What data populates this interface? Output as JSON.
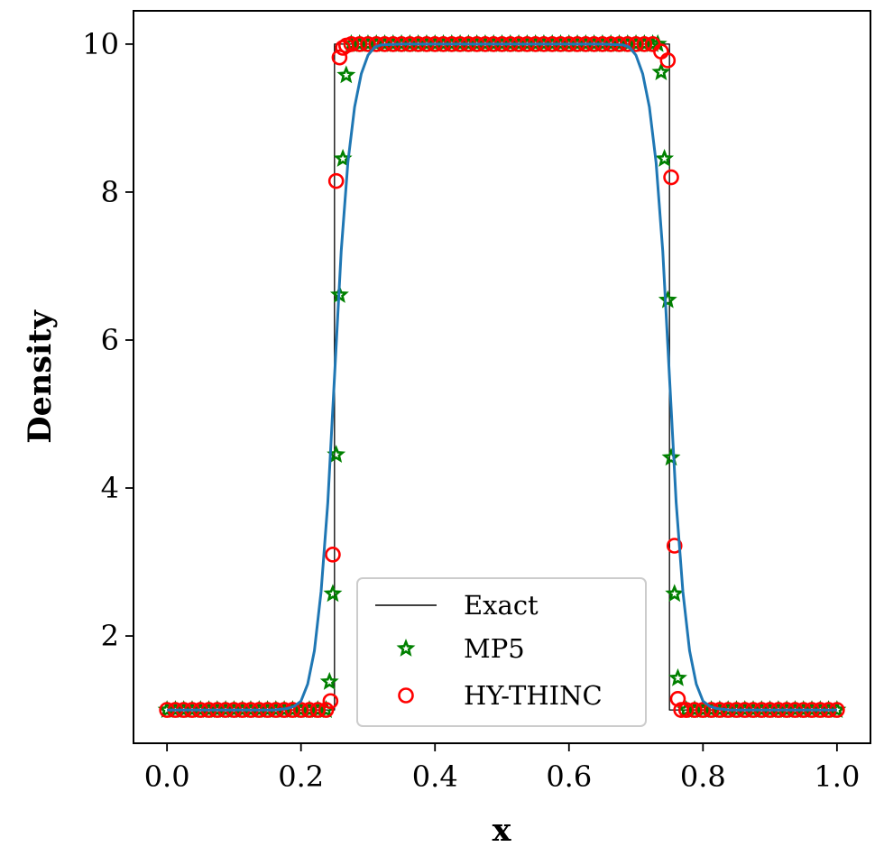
{
  "chart_data": {
    "type": "line",
    "xlabel": "x",
    "ylabel": "Density",
    "xlim": [
      -0.05,
      1.05
    ],
    "ylim": [
      0.55,
      10.45
    ],
    "x_ticks": [
      0.0,
      0.2,
      0.4,
      0.6,
      0.8,
      1.0
    ],
    "x_tick_labels": [
      "0.0",
      "0.2",
      "0.4",
      "0.6",
      "0.8",
      "1.0"
    ],
    "y_ticks": [
      2,
      4,
      6,
      8,
      10
    ],
    "y_tick_labels": [
      "2",
      "4",
      "6",
      "8",
      "10"
    ],
    "grid": false,
    "legend_position": "lower-center",
    "series": [
      {
        "name": "Exact",
        "style": "line",
        "color": "#000000",
        "x": [
          0.0,
          0.25,
          0.25,
          0.75,
          0.75,
          1.0
        ],
        "y": [
          1.0,
          1.0,
          10.0,
          10.0,
          1.0,
          1.0
        ]
      },
      {
        "name": "MP5",
        "style": "star-markers",
        "color": "#008000",
        "x": [
          0.0,
          0.0125,
          0.025,
          0.0375,
          0.05,
          0.0625,
          0.075,
          0.0875,
          0.1,
          0.1125,
          0.125,
          0.1375,
          0.15,
          0.1625,
          0.175,
          0.1875,
          0.2,
          0.2125,
          0.225,
          0.2375,
          0.2425,
          0.2475,
          0.2525,
          0.2575,
          0.2625,
          0.2675,
          0.275,
          0.2875,
          0.3,
          0.3125,
          0.325,
          0.3375,
          0.35,
          0.3625,
          0.375,
          0.3875,
          0.4,
          0.4125,
          0.425,
          0.4375,
          0.45,
          0.4625,
          0.475,
          0.4875,
          0.5,
          0.5125,
          0.525,
          0.5375,
          0.55,
          0.5625,
          0.575,
          0.5875,
          0.6,
          0.6125,
          0.625,
          0.6375,
          0.65,
          0.6625,
          0.675,
          0.6875,
          0.7,
          0.7125,
          0.725,
          0.7325,
          0.7375,
          0.7425,
          0.7475,
          0.7525,
          0.7575,
          0.7625,
          0.775,
          0.7875,
          0.8,
          0.8125,
          0.825,
          0.8375,
          0.85,
          0.8625,
          0.875,
          0.8875,
          0.9,
          0.9125,
          0.925,
          0.9375,
          0.95,
          0.9625,
          0.975,
          0.9875,
          1.0
        ],
        "y": [
          1.0,
          1.0,
          1.0,
          1.0,
          1.0,
          1.0,
          1.0,
          1.0,
          1.0,
          1.0,
          1.0,
          1.0,
          1.0,
          1.0,
          1.0,
          1.0,
          1.0,
          1.0,
          1.0,
          1.0,
          1.38,
          2.57,
          4.45,
          6.61,
          8.45,
          9.58,
          10.0,
          10.0,
          10.0,
          10.0,
          10.0,
          10.0,
          10.0,
          10.0,
          10.0,
          10.0,
          10.0,
          10.0,
          10.0,
          10.0,
          10.0,
          10.0,
          10.0,
          10.0,
          10.0,
          10.0,
          10.0,
          10.0,
          10.0,
          10.0,
          10.0,
          10.0,
          10.0,
          10.0,
          10.0,
          10.0,
          10.0,
          10.0,
          10.0,
          10.0,
          10.0,
          10.0,
          10.0,
          10.0,
          9.62,
          8.45,
          6.54,
          4.41,
          2.57,
          1.43,
          1.0,
          1.0,
          1.0,
          1.0,
          1.0,
          1.0,
          1.0,
          1.0,
          1.0,
          1.0,
          1.0,
          1.0,
          1.0,
          1.0,
          1.0,
          1.0,
          1.0,
          1.0,
          1.0
        ]
      },
      {
        "name": "HY-THINC",
        "style": "circle-markers",
        "color": "#ff0000",
        "x": [
          0.0,
          0.0125,
          0.025,
          0.0375,
          0.05,
          0.0625,
          0.075,
          0.0875,
          0.1,
          0.1125,
          0.125,
          0.1375,
          0.15,
          0.1625,
          0.175,
          0.1875,
          0.2,
          0.2125,
          0.225,
          0.2375,
          0.244,
          0.2475,
          0.2525,
          0.2575,
          0.2625,
          0.2675,
          0.275,
          0.2875,
          0.3,
          0.3125,
          0.325,
          0.3375,
          0.35,
          0.3625,
          0.375,
          0.3875,
          0.4,
          0.4125,
          0.425,
          0.4375,
          0.45,
          0.4625,
          0.475,
          0.4875,
          0.5,
          0.5125,
          0.525,
          0.5375,
          0.55,
          0.5625,
          0.575,
          0.5875,
          0.6,
          0.6125,
          0.625,
          0.6375,
          0.65,
          0.6625,
          0.675,
          0.6875,
          0.7,
          0.7125,
          0.725,
          0.7375,
          0.7475,
          0.7525,
          0.7575,
          0.7625,
          0.7675,
          0.775,
          0.7875,
          0.8,
          0.8125,
          0.825,
          0.8375,
          0.85,
          0.8625,
          0.875,
          0.8875,
          0.9,
          0.9125,
          0.925,
          0.9375,
          0.95,
          0.9625,
          0.975,
          0.9875,
          1.0
        ],
        "y": [
          1.0,
          1.0,
          1.0,
          1.0,
          1.0,
          1.0,
          1.0,
          1.0,
          1.0,
          1.0,
          1.0,
          1.0,
          1.0,
          1.0,
          1.0,
          1.0,
          1.0,
          1.0,
          1.0,
          1.0,
          1.12,
          3.1,
          8.15,
          9.82,
          9.95,
          9.98,
          10.0,
          10.0,
          10.0,
          10.0,
          10.0,
          10.0,
          10.0,
          10.0,
          10.0,
          10.0,
          10.0,
          10.0,
          10.0,
          10.0,
          10.0,
          10.0,
          10.0,
          10.0,
          10.0,
          10.0,
          10.0,
          10.0,
          10.0,
          10.0,
          10.0,
          10.0,
          10.0,
          10.0,
          10.0,
          10.0,
          10.0,
          10.0,
          10.0,
          10.0,
          10.0,
          10.0,
          10.0,
          9.9,
          9.78,
          8.2,
          3.22,
          1.15,
          1.0,
          1.0,
          1.0,
          1.0,
          1.0,
          1.0,
          1.0,
          1.0,
          1.0,
          1.0,
          1.0,
          1.0,
          1.0,
          1.0,
          1.0,
          1.0,
          1.0,
          1.0,
          1.0,
          1.0
        ]
      },
      {
        "style": "line",
        "color": "#1f77b4",
        "x": [
          0.0,
          0.1,
          0.16,
          0.18,
          0.19,
          0.2,
          0.21,
          0.22,
          0.23,
          0.24,
          0.25,
          0.26,
          0.27,
          0.28,
          0.29,
          0.3,
          0.31,
          0.32,
          0.35,
          0.5,
          0.65,
          0.68,
          0.69,
          0.7,
          0.71,
          0.72,
          0.73,
          0.74,
          0.75,
          0.76,
          0.77,
          0.78,
          0.79,
          0.8,
          0.81,
          0.82,
          0.84,
          0.9,
          1.0
        ],
        "y": [
          1.0,
          1.0,
          1.0,
          1.02,
          1.05,
          1.12,
          1.35,
          1.8,
          2.6,
          3.8,
          5.5,
          7.2,
          8.4,
          9.15,
          9.6,
          9.85,
          9.96,
          9.99,
          10.0,
          10.0,
          10.0,
          9.99,
          9.96,
          9.85,
          9.6,
          9.15,
          8.4,
          7.2,
          5.5,
          3.8,
          2.6,
          1.8,
          1.35,
          1.12,
          1.05,
          1.02,
          1.0,
          1.0,
          1.0
        ]
      }
    ]
  }
}
